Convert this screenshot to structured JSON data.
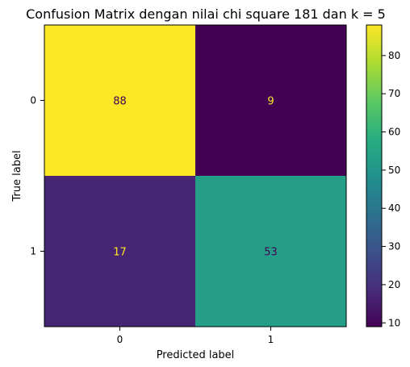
{
  "chart_data": {
    "type": "heatmap",
    "title": "Confusion Matrix dengan nilai chi square 181 dan k = 5",
    "xlabel": "Predicted label",
    "ylabel": "True label",
    "x_categories": [
      "0",
      "1"
    ],
    "y_categories": [
      "0",
      "1"
    ],
    "values": [
      [
        88,
        9
      ],
      [
        17,
        53
      ]
    ],
    "colormap": "viridis",
    "colorbar": {
      "range": [
        9,
        88
      ],
      "ticks": [
        10,
        20,
        30,
        40,
        50,
        60,
        70,
        80
      ]
    },
    "cell_text_colors": {
      "on_dark": "#fde725",
      "on_light": "#440154"
    },
    "grid": false,
    "legend": "colorbar-right"
  }
}
